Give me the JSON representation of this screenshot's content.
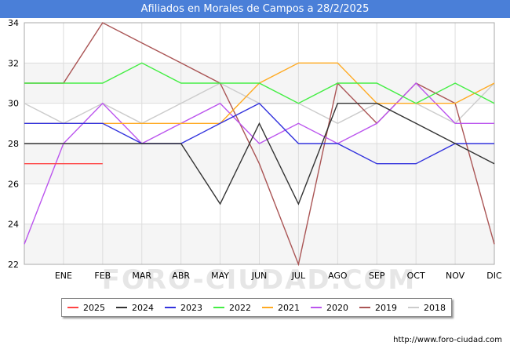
{
  "header": {
    "title": "Afiliados en Morales de Campos a 28/2/2025"
  },
  "footer": {
    "url": "http://www.foro-ciudad.com"
  },
  "watermark": "FORO-CIUDAD.COM",
  "chart_data": {
    "type": "line",
    "title": "Afiliados en Morales de Campos a 28/2/2025",
    "xlabel": "",
    "ylabel": "",
    "categories": [
      "",
      "ENE",
      "FEB",
      "MAR",
      "ABR",
      "MAY",
      "JUN",
      "JUL",
      "AGO",
      "SEP",
      "OCT",
      "NOV",
      "DIC"
    ],
    "ylim": [
      22,
      34
    ],
    "yticks": [
      22,
      24,
      26,
      28,
      30,
      32,
      34
    ],
    "grid": true,
    "legend_position": "bottom",
    "series": [
      {
        "name": "2025",
        "color": "#ff4444",
        "values": [
          27,
          27,
          27,
          null,
          null,
          null,
          null,
          null,
          null,
          null,
          null,
          null,
          null
        ]
      },
      {
        "name": "2024",
        "color": "#333333",
        "values": [
          28,
          28,
          28,
          28,
          28,
          25,
          29,
          25,
          30,
          30,
          29,
          28,
          27
        ]
      },
      {
        "name": "2023",
        "color": "#3333dd",
        "values": [
          29,
          29,
          29,
          28,
          28,
          29,
          30,
          28,
          28,
          27,
          27,
          28,
          28
        ]
      },
      {
        "name": "2022",
        "color": "#44ee44",
        "values": [
          31,
          31,
          31,
          32,
          31,
          31,
          31,
          30,
          31,
          31,
          30,
          31,
          30
        ]
      },
      {
        "name": "2021",
        "color": "#ffaa22",
        "values": [
          29,
          29,
          29,
          29,
          29,
          29,
          31,
          32,
          32,
          30,
          30,
          30,
          31
        ]
      },
      {
        "name": "2020",
        "color": "#bb55ee",
        "values": [
          23,
          28,
          30,
          28,
          29,
          30,
          28,
          29,
          28,
          29,
          31,
          29,
          29
        ]
      },
      {
        "name": "2019",
        "color": "#aa5555",
        "values": [
          31,
          31,
          34,
          33,
          32,
          31,
          27,
          22,
          31,
          29,
          31,
          30,
          23
        ]
      },
      {
        "name": "2018",
        "color": "#cccccc",
        "values": [
          30,
          29,
          30,
          29,
          30,
          31,
          30,
          30,
          29,
          30,
          30,
          29,
          31
        ]
      }
    ]
  }
}
